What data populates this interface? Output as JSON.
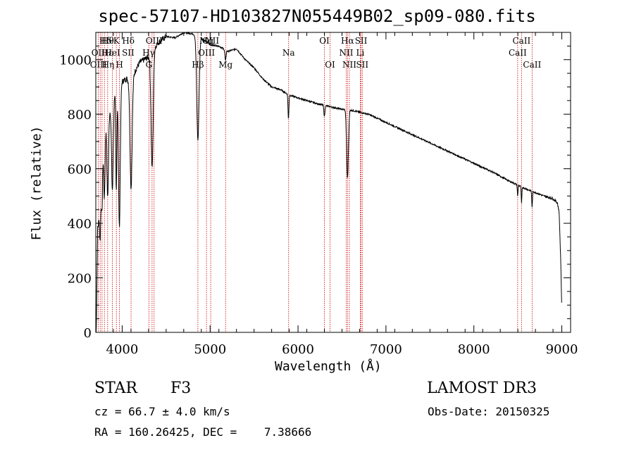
{
  "chart_data": {
    "type": "line",
    "title": "spec-57107-HD103827N055449B02_sp09-080.fits",
    "xlabel": "Wavelength (Å)",
    "ylabel": "Flux (relative)",
    "xlim": [
      3700,
      9100
    ],
    "ylim": [
      0,
      1100
    ],
    "xticks": [
      4000,
      5000,
      6000,
      7000,
      8000,
      9000
    ],
    "xtick_labels": [
      "4000",
      "5000",
      "6000",
      "7000",
      "8000",
      "9000"
    ],
    "yticks": [
      0,
      200,
      400,
      600,
      800,
      1000
    ],
    "ytick_labels": [
      "0",
      "200",
      "400",
      "600",
      "800",
      "1000"
    ],
    "series": [
      {
        "name": "spectrum",
        "continuum": [
          [
            3700,
            0
          ],
          [
            3710,
            260
          ],
          [
            3720,
            560
          ],
          [
            3760,
            700
          ],
          [
            3800,
            780
          ],
          [
            3850,
            800
          ],
          [
            3900,
            880
          ],
          [
            3950,
            900
          ],
          [
            4000,
            920
          ],
          [
            4050,
            930
          ],
          [
            4100,
            920
          ],
          [
            4150,
            960
          ],
          [
            4200,
            990
          ],
          [
            4300,
            1010
          ],
          [
            4400,
            1060
          ],
          [
            4500,
            1085
          ],
          [
            4600,
            1080
          ],
          [
            4700,
            1100
          ],
          [
            4800,
            1095
          ],
          [
            4900,
            1080
          ],
          [
            5000,
            1055
          ],
          [
            5100,
            1050
          ],
          [
            5200,
            1030
          ],
          [
            5300,
            1040
          ],
          [
            5400,
            1000
          ],
          [
            5500,
            970
          ],
          [
            5600,
            930
          ],
          [
            5700,
            900
          ],
          [
            5800,
            890
          ],
          [
            5900,
            870
          ],
          [
            6000,
            860
          ],
          [
            6200,
            840
          ],
          [
            6400,
            825
          ],
          [
            6500,
            818
          ],
          [
            6600,
            815
          ],
          [
            6800,
            800
          ],
          [
            7000,
            770
          ],
          [
            7200,
            740
          ],
          [
            7400,
            710
          ],
          [
            7600,
            680
          ],
          [
            7800,
            650
          ],
          [
            8000,
            620
          ],
          [
            8200,
            590
          ],
          [
            8400,
            555
          ],
          [
            8600,
            525
          ],
          [
            8800,
            500
          ],
          [
            8900,
            490
          ],
          [
            8950,
            475
          ],
          [
            8970,
            440
          ],
          [
            8990,
            240
          ],
          [
            9000,
            70
          ]
        ],
        "absorption_lines": [
          [
            3734,
            30,
            200
          ],
          [
            3750,
            6,
            150
          ],
          [
            3770,
            7,
            180
          ],
          [
            3798,
            8,
            260
          ],
          [
            3835,
            9,
            300
          ],
          [
            3889,
            10,
            340
          ],
          [
            3933,
            6,
            380
          ],
          [
            3968,
            10,
            520
          ],
          [
            4101,
            12,
            390
          ],
          [
            4340,
            12,
            430
          ],
          [
            4861,
            13,
            380
          ],
          [
            5175,
            6,
            40
          ],
          [
            5891,
            5,
            90
          ],
          [
            6300,
            6,
            40
          ],
          [
            6563,
            10,
            250
          ],
          [
            8498,
            4,
            40
          ],
          [
            8542,
            4,
            60
          ],
          [
            8662,
            4,
            60
          ]
        ]
      }
    ]
  },
  "lines": [
    {
      "label": "Hδ",
      "wl": 3810,
      "row": 1
    },
    {
      "label": "OII",
      "wl": 3727,
      "row": 2
    },
    {
      "label": "OIII",
      "wl": 3730,
      "row": 3
    },
    {
      "label": "Hθ",
      "wl": 3835,
      "row": 1
    },
    {
      "label": "Hε",
      "wl": 3830,
      "row": 2
    },
    {
      "label": "Hη",
      "wl": 3840,
      "row": 3
    },
    {
      "label": "K",
      "wl": 3934,
      "row": 1
    },
    {
      "label": "HeI",
      "wl": 3889,
      "row": 2
    },
    {
      "label": "H",
      "wl": 3969,
      "row": 3
    },
    {
      "label": "Hδ",
      "wl": 4070,
      "row": 1
    },
    {
      "label": "SII",
      "wl": 4068,
      "row": 2
    },
    {
      "label": "OIII",
      "wl": 4363,
      "row": 1
    },
    {
      "label": "Hγ",
      "wl": 4300,
      "row": 2
    },
    {
      "label": "G",
      "wl": 4304,
      "row": 3
    },
    {
      "label": "Hβ",
      "wl": 4861,
      "row": 3
    },
    {
      "label": "Mg",
      "wl": 4959,
      "row": 1
    },
    {
      "label": "OIII",
      "wl": 5007,
      "row": 1
    },
    {
      "label": "OIII",
      "wl": 4959,
      "row": 2
    },
    {
      "label": "Mg",
      "wl": 5176,
      "row": 3
    },
    {
      "label": "Na",
      "wl": 5893,
      "row": 2
    },
    {
      "label": "OI",
      "wl": 6300,
      "row": 1
    },
    {
      "label": "OI",
      "wl": 6364,
      "row": 3
    },
    {
      "label": "Hα",
      "wl": 6563,
      "row": 1
    },
    {
      "label": "SII",
      "wl": 6717,
      "row": 1
    },
    {
      "label": "NII",
      "wl": 6548,
      "row": 2
    },
    {
      "label": "Li",
      "wl": 6708,
      "row": 2
    },
    {
      "label": "NII",
      "wl": 6584,
      "row": 3
    },
    {
      "label": "SII",
      "wl": 6731,
      "row": 3
    },
    {
      "label": "CaII",
      "wl": 8542,
      "row": 1
    },
    {
      "label": "CaII",
      "wl": 8498,
      "row": 2
    },
    {
      "label": "CaII",
      "wl": 8662,
      "row": 3
    }
  ],
  "line_marker_wavelengths": [
    3727,
    3750,
    3771,
    3798,
    3835,
    3889,
    3934,
    3969,
    4101,
    4304,
    4340,
    4363,
    4861,
    4959,
    5007,
    5176,
    5893,
    6300,
    6364,
    6548,
    6563,
    6584,
    6708,
    6717,
    6731,
    8498,
    8542,
    8662
  ],
  "colors": {
    "marker": "#cc0000",
    "spectrum": "#000000",
    "axes": "#000000"
  },
  "info": {
    "object_class": "STAR",
    "subclass": "F3",
    "survey": "LAMOST DR3",
    "cz": "cz = 66.7 ± 4.0 km/s",
    "obs_date": "Obs-Date: 20150325",
    "coords": "RA = 160.26425, DEC =    7.38666"
  }
}
